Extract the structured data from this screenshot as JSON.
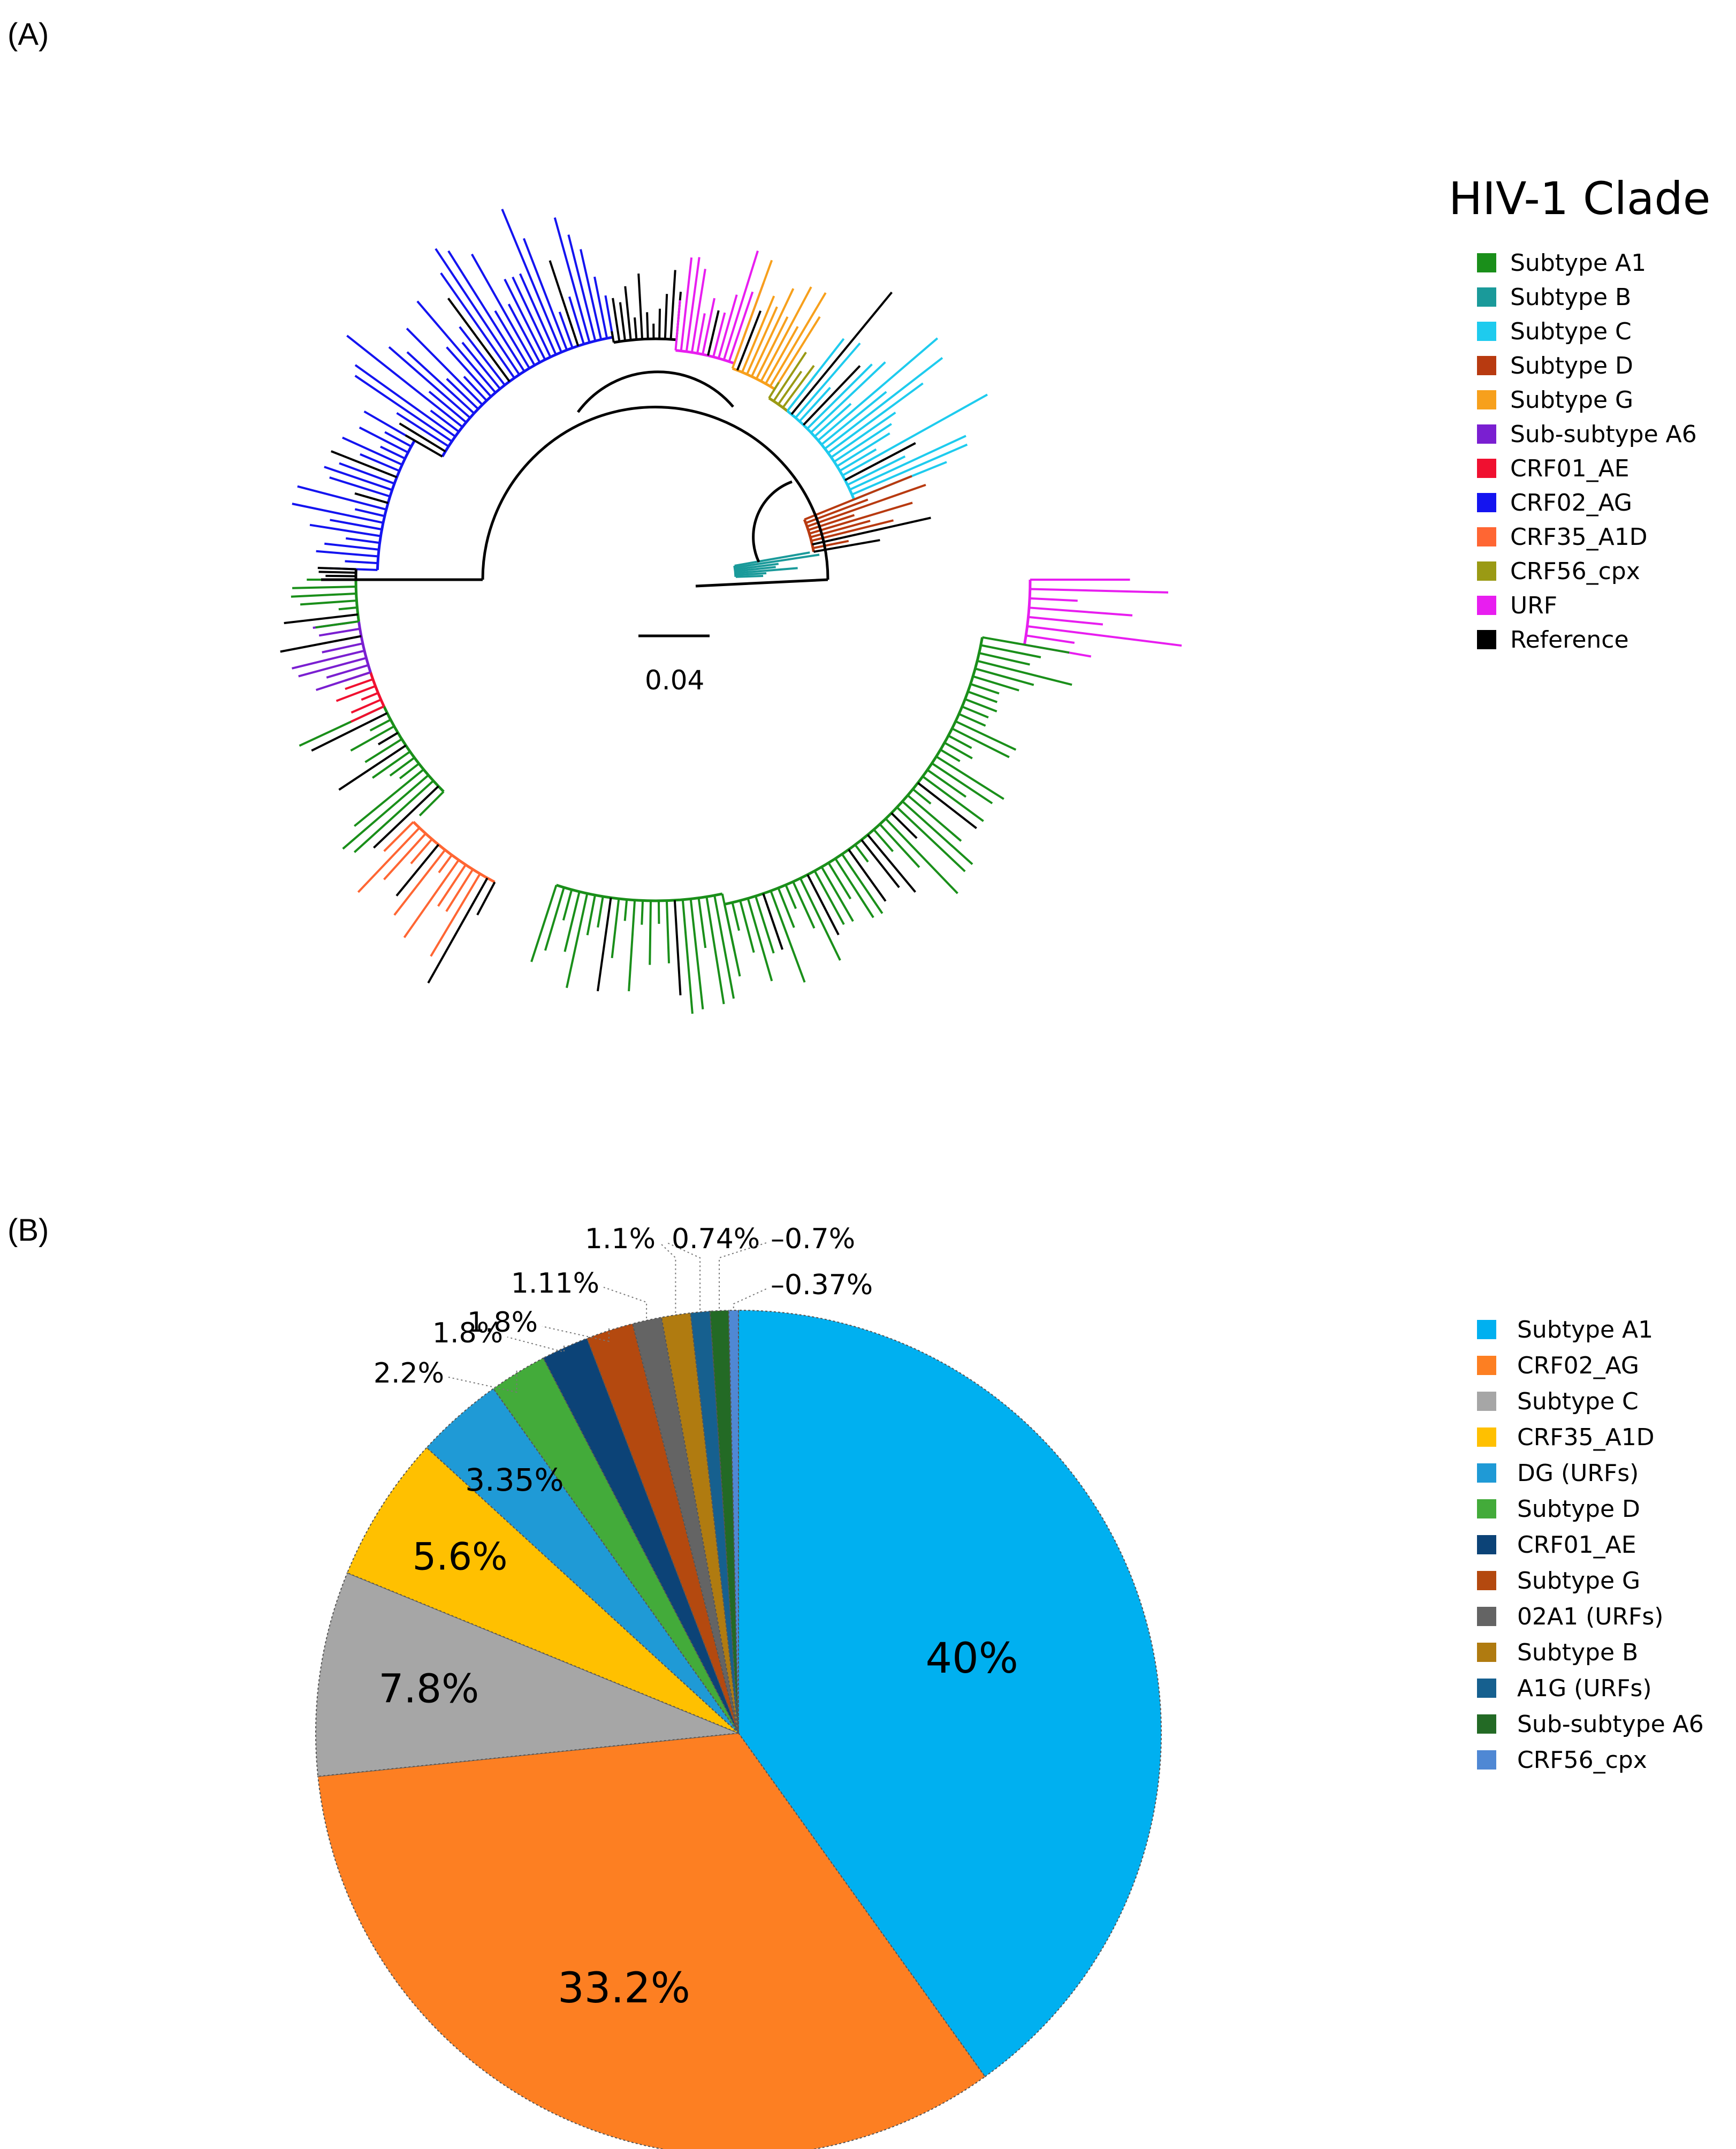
{
  "panels": {
    "a_label": "(A)",
    "b_label": "(B)"
  },
  "tree": {
    "scale_bar_label": "0.04",
    "legend_title": "HIV-1 Clade",
    "legend": [
      {
        "label": "Subtype A1",
        "color": "#1a8f1a"
      },
      {
        "label": "Subtype B",
        "color": "#1a9a9a"
      },
      {
        "label": "Subtype C",
        "color": "#1ecbee"
      },
      {
        "label": "Subtype D",
        "color": "#b83a10"
      },
      {
        "label": "Subtype G",
        "color": "#f7a01c"
      },
      {
        "label": "Sub-subtype A6",
        "color": "#7a1fd1"
      },
      {
        "label": "CRF01_AE",
        "color": "#f01030"
      },
      {
        "label": "CRF02_AG",
        "color": "#1414f0"
      },
      {
        "label": "CRF35_A1D",
        "color": "#ff6633"
      },
      {
        "label": "CRF56_cpx",
        "color": "#9a9a14"
      },
      {
        "label": "URF",
        "color": "#e81ef0"
      },
      {
        "label": "Reference",
        "color": "#000000"
      }
    ]
  },
  "chart_data": {
    "type": "pie",
    "title": "",
    "categories": [
      "Subtype A1",
      "CRF02_AG",
      "Subtype C",
      "CRF35_A1D",
      "DG (URFs)",
      "Subtype D",
      "CRF01_AE",
      "Subtype G",
      "02A1 (URFs)",
      "Subtype B",
      "A1G (URFs)",
      "Sub-subtype A6",
      "CRF56_cpx"
    ],
    "values": [
      40,
      33.2,
      7.8,
      5.6,
      3.35,
      2.2,
      1.8,
      1.8,
      1.11,
      1.1,
      0.74,
      0.7,
      0.37
    ],
    "labels": [
      "40%",
      "33.2%",
      "7.8%",
      "5.6%",
      "3.35%",
      "2.2%",
      "1.8%",
      "1.8%",
      "1.11%",
      "1.1%",
      "0.74%",
      "0.7%",
      "0.37%"
    ],
    "colors": [
      "#00b0f0",
      "#fd7f22",
      "#a6a6a6",
      "#ffc000",
      "#1f9ad6",
      "#43ab3a",
      "#0c4377",
      "#b4490f",
      "#646464",
      "#b07b10",
      "#16608f",
      "#236a25",
      "#4f88d4"
    ],
    "legend_position": "right"
  }
}
